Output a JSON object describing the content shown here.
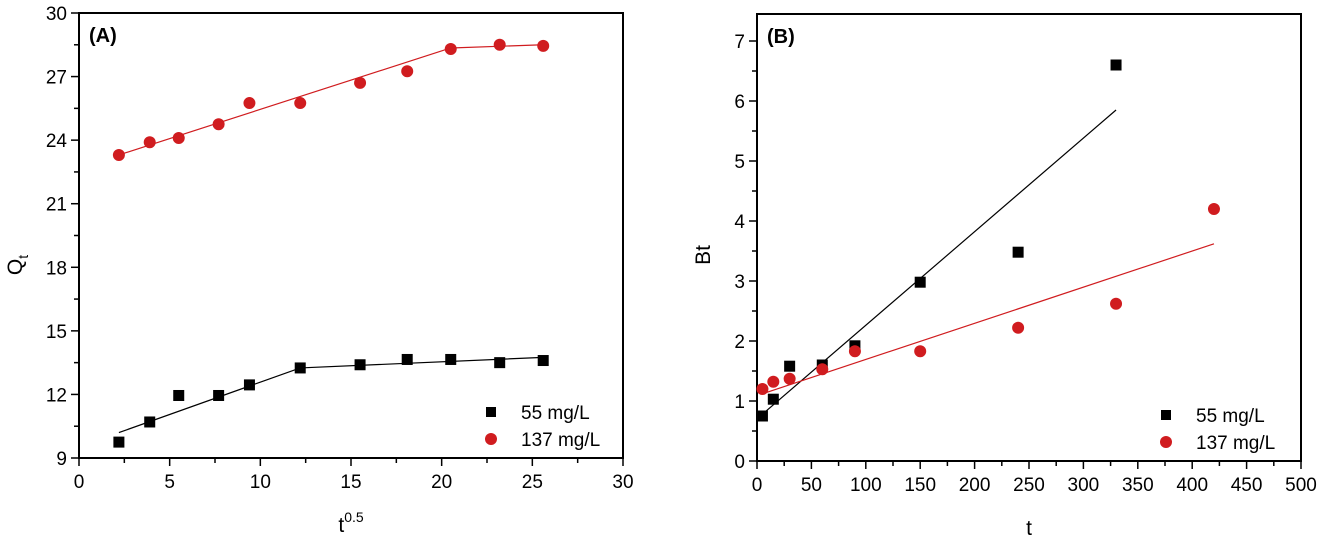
{
  "chart_data": [
    {
      "type": "scatter",
      "panel_label": "(A)",
      "xlabel": "t",
      "xlabel_sup": "0.5",
      "ylabel": "Q",
      "ylabel_sub": "t",
      "xlim": [
        0,
        30
      ],
      "ylim": [
        9,
        30
      ],
      "xticks": [
        0,
        5,
        10,
        15,
        20,
        25,
        30
      ],
      "yticks": [
        9,
        12,
        15,
        18,
        21,
        24,
        27,
        30
      ],
      "grid": false,
      "legend_position": "bottom-right",
      "series": [
        {
          "name": "55 mg/L",
          "marker": "square",
          "color": "#000000",
          "x": [
            2.2,
            3.9,
            5.5,
            7.7,
            9.4,
            12.2,
            15.5,
            18.1,
            20.5,
            23.2,
            25.6
          ],
          "y": [
            9.75,
            10.7,
            11.95,
            11.95,
            12.45,
            13.25,
            13.4,
            13.65,
            13.65,
            13.5,
            13.6
          ],
          "fit_line": {
            "x": [
              2.2,
              12.2,
              25.6
            ],
            "y": [
              10.2,
              13.25,
              13.75
            ]
          }
        },
        {
          "name": "137 mg/L",
          "marker": "circle",
          "color": "#d01c1f",
          "x": [
            2.2,
            3.9,
            5.5,
            7.7,
            9.4,
            12.2,
            15.5,
            18.1,
            20.5,
            23.2,
            25.6
          ],
          "y": [
            23.3,
            23.9,
            24.1,
            24.75,
            25.75,
            25.75,
            26.7,
            27.25,
            28.3,
            28.5,
            28.45
          ],
          "fit_line": {
            "x": [
              2.2,
              20.5,
              25.6
            ],
            "y": [
              23.3,
              28.35,
              28.5
            ]
          }
        }
      ]
    },
    {
      "type": "scatter",
      "panel_label": "(B)",
      "xlabel": "t",
      "ylabel": "Bt",
      "xlim": [
        0,
        500
      ],
      "ylim": [
        0,
        7.45
      ],
      "xticks": [
        0,
        50,
        100,
        150,
        200,
        250,
        300,
        350,
        400,
        450,
        500
      ],
      "yticks": [
        0,
        1,
        2,
        3,
        4,
        5,
        6,
        7
      ],
      "grid": false,
      "legend_position": "bottom-right",
      "series": [
        {
          "name": "55 mg/L",
          "marker": "square",
          "color": "#000000",
          "x": [
            5,
            15,
            30,
            60,
            90,
            150,
            240,
            330
          ],
          "y": [
            0.75,
            1.03,
            1.58,
            1.6,
            1.92,
            2.98,
            3.48,
            6.6
          ],
          "fit_line": {
            "x": [
              5,
              330
            ],
            "y": [
              0.78,
              5.85
            ]
          }
        },
        {
          "name": "137 mg/L",
          "marker": "circle",
          "color": "#d01c1f",
          "x": [
            5,
            15,
            30,
            60,
            90,
            150,
            240,
            330,
            420
          ],
          "y": [
            1.2,
            1.32,
            1.37,
            1.53,
            1.83,
            1.83,
            2.22,
            2.62,
            4.2
          ],
          "fit_line": {
            "x": [
              5,
              420
            ],
            "y": [
              1.12,
              3.62
            ]
          }
        }
      ]
    }
  ]
}
